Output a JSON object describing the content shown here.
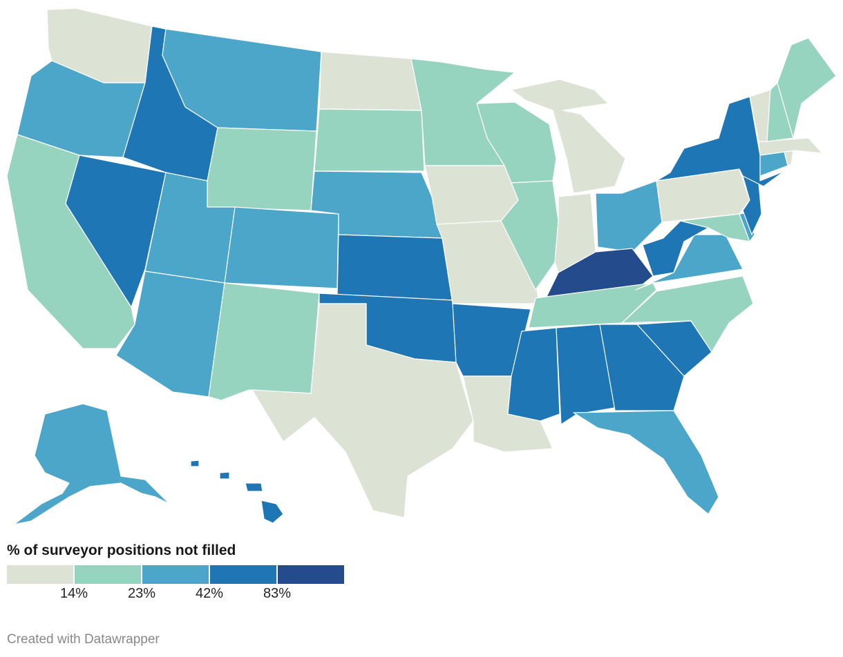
{
  "legend": {
    "title": "% of surveyor positions not filled",
    "ticks": [
      "14%",
      "23%",
      "42%",
      "83%"
    ],
    "colors": [
      "#dce3d5",
      "#97d4c0",
      "#4ba6ca",
      "#1f76b5",
      "#244b8c"
    ]
  },
  "credit": "Created with Datawrapper",
  "state_classes": {
    "WA": 0,
    "OR": 2,
    "CA": 1,
    "NV": 3,
    "ID": 3,
    "MT": 2,
    "WY": 1,
    "UT": 2,
    "AZ": 2,
    "CO": 2,
    "NM": 1,
    "ND": 0,
    "SD": 1,
    "NE": 2,
    "KS": 3,
    "OK": 3,
    "TX": 0,
    "MN": 1,
    "IA": 0,
    "MO": 0,
    "AR": 3,
    "LA": 0,
    "WI": 1,
    "IL": 1,
    "MI": 0,
    "IN": 0,
    "OH": 2,
    "KY": 4,
    "TN": 1,
    "MS": 3,
    "AL": 3,
    "GA": 3,
    "FL": 2,
    "SC": 3,
    "NC": 1,
    "VA": 2,
    "WV": 3,
    "MD": 1,
    "DE": 2,
    "PA": 0,
    "NJ": 3,
    "NY": 3,
    "CT": 2,
    "RI": 0,
    "MA": 0,
    "VT": 0,
    "NH": 1,
    "ME": 1,
    "AK": 2,
    "HI": 3
  }
}
